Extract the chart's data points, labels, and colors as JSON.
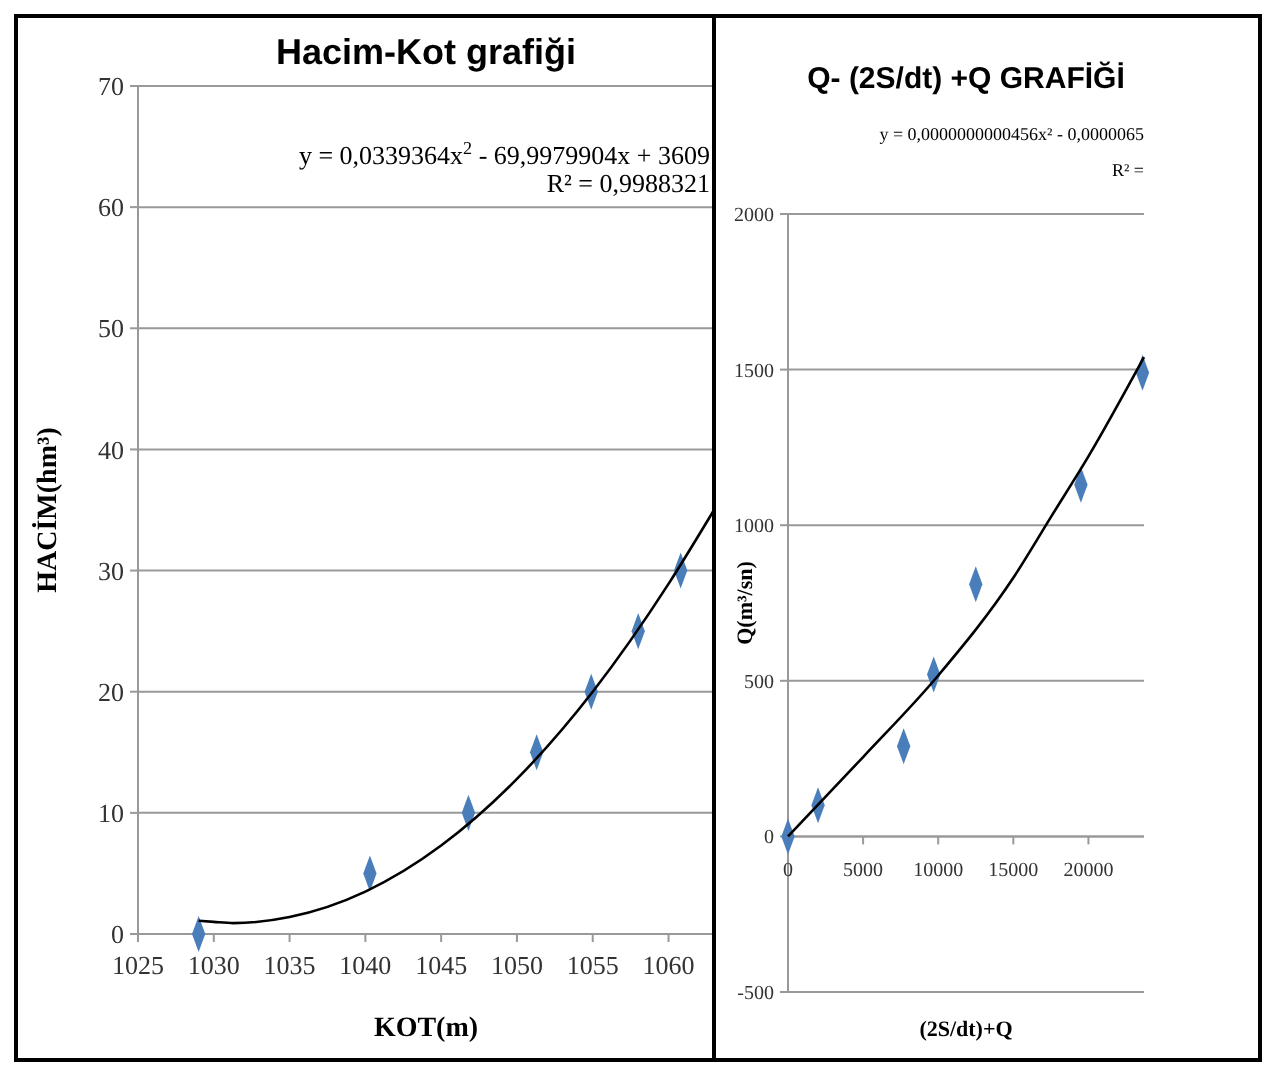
{
  "chart_data": [
    {
      "type": "scatter",
      "title": "Hacim-Kot grafiği",
      "xlabel": "KOT(m)",
      "ylabel": "HACİM(hm³)",
      "annotations": [
        "y = 0,0339364x$^{2}$ - 69,9979904x + 3609",
        "R² = 0,9988321"
      ],
      "xlim": [
        1025,
        1063
      ],
      "xticks": [
        1025,
        1030,
        1035,
        1040,
        1045,
        1050,
        1055,
        1060
      ],
      "ylim": [
        0,
        70
      ],
      "yticks": [
        0,
        10,
        20,
        30,
        40,
        50,
        60,
        70
      ],
      "grid": "y",
      "marker": "diamond",
      "series": [
        {
          "color": "#4a7ebb",
          "x": [
            1029,
            1040.3,
            1046.8,
            1051.3,
            1054.9,
            1058,
            1060.8
          ],
          "values": [
            0,
            5,
            10,
            15,
            20,
            25,
            30
          ]
        },
        {
          "type": "line",
          "color": "#000000",
          "marker": "none",
          "x": [
            1029,
            1030,
            1031.3,
            1035,
            1040,
            1045,
            1050,
            1055,
            1060,
            1063
          ],
          "values": [
            1.1,
            1,
            0.9,
            1.4,
            3.5,
            7.3,
            12.8,
            20,
            28.9,
            35
          ]
        }
      ]
    },
    {
      "type": "scatter",
      "title": "Q- (2S/dt) +Q GRAFİĞİ",
      "xlabel": "(2S/dt)+Q",
      "ylabel": "Q(m³/sn)",
      "annotations": [
        "y = 0,0000000000456x² - 0,0000065",
        "R² ="
      ],
      "xlim": [
        0,
        23700
      ],
      "xticks": [
        0,
        5000,
        10000,
        15000,
        20000
      ],
      "ylim": [
        -500,
        2000
      ],
      "yticks": [
        -500,
        0,
        500,
        1000,
        1500,
        2000
      ],
      "grid": "y",
      "marker": "diamond",
      "series": [
        {
          "color": "#4a7ebb",
          "x": [
            0,
            2000,
            7700,
            9700,
            12500,
            19500,
            23600
          ],
          "values": [
            0,
            100,
            290,
            520,
            810,
            1130,
            1490
          ]
        },
        {
          "type": "line",
          "color": "#000000",
          "marker": "none",
          "x": [
            0,
            5000,
            10000,
            15000,
            17500,
            20000,
            23700
          ],
          "values": [
            0,
            255,
            517,
            831,
            1026,
            1221,
            1540
          ]
        }
      ]
    }
  ]
}
